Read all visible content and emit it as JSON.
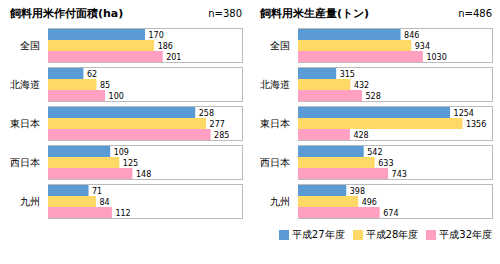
{
  "chart_data": [
    {
      "type": "bar",
      "orientation": "horizontal",
      "title": "飼料用米作付面積(ha)",
      "subtitle": "n=380",
      "categories": [
        "全国",
        "北海道",
        "東日本",
        "西日本",
        "九州"
      ],
      "series": [
        {
          "name": "平成27年度",
          "color": "#5b9bd5",
          "values": [
            170,
            62,
            258,
            109,
            71
          ]
        },
        {
          "name": "平成28年度",
          "color": "#ffd966",
          "values": [
            186,
            85,
            277,
            125,
            84
          ]
        },
        {
          "name": "平成32年度",
          "color": "#ff9fc1",
          "values": [
            201,
            100,
            285,
            148,
            112
          ]
        }
      ],
      "xlim": [
        0,
        340
      ],
      "data_labels": true,
      "tick_labels": "y"
    },
    {
      "type": "bar",
      "orientation": "horizontal",
      "title": "飼料用米生産量(トン)",
      "subtitle": "n=486",
      "categories": [
        "全国",
        "北海道",
        "東日本",
        "西日本",
        "九州"
      ],
      "series": [
        {
          "name": "平成27年度",
          "color": "#5b9bd5",
          "values": [
            846,
            315,
            1254,
            542,
            398
          ]
        },
        {
          "name": "平成28年度",
          "color": "#ffd966",
          "values": [
            934,
            432,
            1356,
            633,
            496
          ]
        },
        {
          "name": "平成32年度",
          "color": "#ff9fc1",
          "values": [
            1030,
            528,
            428,
            743,
            674
          ]
        }
      ],
      "xlim": [
        0,
        1600
      ],
      "data_labels": true,
      "tick_labels": "y",
      "legend": "lower right"
    }
  ]
}
